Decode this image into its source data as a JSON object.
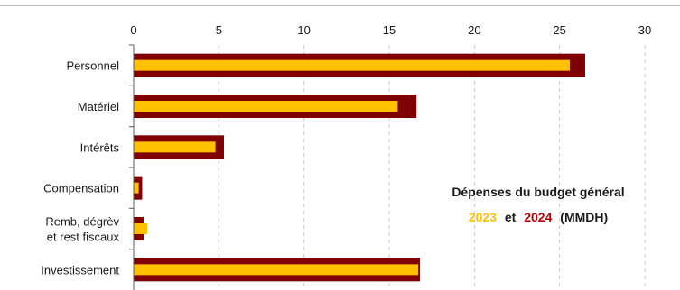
{
  "chart_data": {
    "type": "bar",
    "orientation": "horizontal",
    "title": "",
    "xlabel": "",
    "ylabel": "",
    "xlim": [
      0,
      30
    ],
    "xticks": [
      "0",
      "5",
      "10",
      "15",
      "20",
      "25",
      "30"
    ],
    "grid": "vertical-dashed",
    "categories": [
      [
        "Personnel"
      ],
      [
        "Matériel"
      ],
      [
        "Intérêts"
      ],
      [
        "Compensation"
      ],
      [
        "Remb, dégrèv",
        "et rest fiscaux"
      ],
      [
        "Investissement"
      ]
    ],
    "series": [
      {
        "name": "2024",
        "color": "#7f0000",
        "values": [
          26.5,
          16.6,
          5.3,
          0.5,
          0.6,
          16.8
        ]
      },
      {
        "name": "2023",
        "color": "#ffc000",
        "values": [
          25.6,
          15.5,
          4.8,
          0.3,
          0.8,
          16.7
        ]
      }
    ],
    "annotation": {
      "line1": "Dépenses du budget général",
      "year1": "2023",
      "year1_color": "#ffc000",
      "connector": "et",
      "year2": "2024",
      "year2_color": "#c00000",
      "unit": "(MMDH)",
      "text_color": "#1a1a1a"
    }
  }
}
